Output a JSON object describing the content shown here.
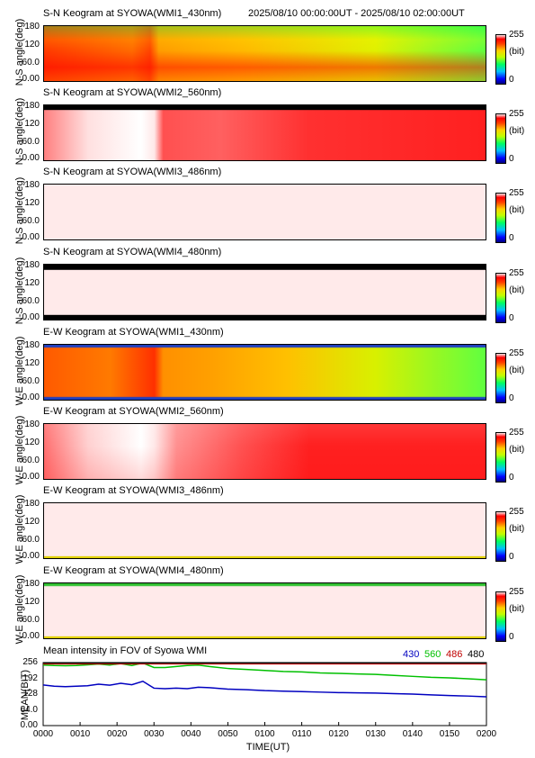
{
  "header": {
    "range": "2025/08/10 00:00:00UT - 2025/08/10 02:00:00UT"
  },
  "keograms": [
    {
      "title": "S-N Keogram at SYOWA(WMI1_430nm)",
      "ylabel": "N-S angle(deg)",
      "yticks": [
        "180",
        "120",
        "60.0",
        "0.00"
      ]
    },
    {
      "title": "S-N Keogram at SYOWA(WMI2_560nm)",
      "ylabel": "N-S angle(deg)",
      "yticks": [
        "180",
        "120",
        "60.0",
        "0.00"
      ]
    },
    {
      "title": "S-N Keogram at SYOWA(WMI3_486nm)",
      "ylabel": "N-S angle(deg)",
      "yticks": [
        "180",
        "120",
        "60.0",
        "0.00"
      ]
    },
    {
      "title": "S-N Keogram at SYOWA(WMI4_480nm)",
      "ylabel": "N-S angle(deg)",
      "yticks": [
        "180",
        "120",
        "60.0",
        "0.00"
      ]
    },
    {
      "title": "E-W Keogram at SYOWA(WMI1_430nm)",
      "ylabel": "W-E angle(deg)",
      "yticks": [
        "180",
        "120",
        "60.0",
        "0.00"
      ]
    },
    {
      "title": "E-W Keogram at SYOWA(WMI2_560nm)",
      "ylabel": "W-E angle(deg)",
      "yticks": [
        "180",
        "120",
        "60.0",
        "0.00"
      ]
    },
    {
      "title": "E-W Keogram at SYOWA(WMI3_486nm)",
      "ylabel": "W-E angle(deg)",
      "yticks": [
        "180",
        "120",
        "60.0",
        "0.00"
      ]
    },
    {
      "title": "E-W Keogram at SYOWA(WMI4_480nm)",
      "ylabel": "W-E angle(deg)",
      "yticks": [
        "180",
        "120",
        "60.0",
        "0.00"
      ]
    }
  ],
  "colorbar": {
    "max": "255",
    "unit": "(bit)",
    "min": "0"
  },
  "mean_panel": {
    "title": "Mean intensity in FOV of Syowa WMI",
    "ylabel": "MEAN(BIT)",
    "yticks": [
      "256",
      "192",
      "128",
      "64.0",
      "0.00"
    ],
    "legend": [
      {
        "label": "430",
        "color": "#0000c0"
      },
      {
        "label": "560",
        "color": "#00c000"
      },
      {
        "label": "486",
        "color": "#c00000"
      },
      {
        "label": "480",
        "color": "#000000"
      }
    ]
  },
  "xaxis": {
    "label": "TIME(UT)",
    "ticks": [
      "0000",
      "0010",
      "0020",
      "0030",
      "0040",
      "0050",
      "0100",
      "0110",
      "0120",
      "0130",
      "0140",
      "0150",
      "0200"
    ]
  },
  "chart_data": {
    "type": "line",
    "x": [
      0,
      3,
      6,
      9,
      12,
      15,
      18,
      21,
      24,
      27,
      30,
      33,
      36,
      39,
      42,
      45,
      50,
      55,
      60,
      65,
      70,
      75,
      80,
      85,
      90,
      95,
      100,
      105,
      110,
      115,
      120
    ],
    "ylim": [
      0,
      256
    ],
    "xlim": [
      0,
      120
    ],
    "series": [
      {
        "name": "430",
        "values": [
          165,
          160,
          158,
          160,
          162,
          168,
          164,
          172,
          166,
          180,
          152,
          150,
          152,
          150,
          156,
          154,
          148,
          146,
          142,
          140,
          138,
          136,
          134,
          133,
          132,
          130,
          128,
          125,
          122,
          120,
          117
        ]
      },
      {
        "name": "560",
        "values": [
          246,
          244,
          243,
          244,
          247,
          250,
          246,
          252,
          244,
          254,
          236,
          236,
          240,
          244,
          246,
          240,
          232,
          228,
          224,
          220,
          218,
          214,
          212,
          210,
          208,
          204,
          200,
          196,
          194,
          190,
          186
        ]
      },
      {
        "name": "486",
        "values": [
          251,
          251,
          251,
          251,
          251,
          251,
          251,
          251,
          251,
          251,
          251,
          251,
          251,
          251,
          251,
          251,
          251,
          251,
          251,
          251,
          251,
          251,
          251,
          251,
          251,
          251,
          251,
          251,
          251,
          251,
          251
        ]
      },
      {
        "name": "480",
        "values": [
          255,
          255,
          255,
          255,
          255,
          255,
          255,
          255,
          255,
          255,
          255,
          255,
          255,
          255,
          255,
          255,
          255,
          255,
          255,
          255,
          255,
          255,
          255,
          255,
          255,
          255,
          255,
          255,
          255,
          255,
          255
        ]
      }
    ]
  }
}
